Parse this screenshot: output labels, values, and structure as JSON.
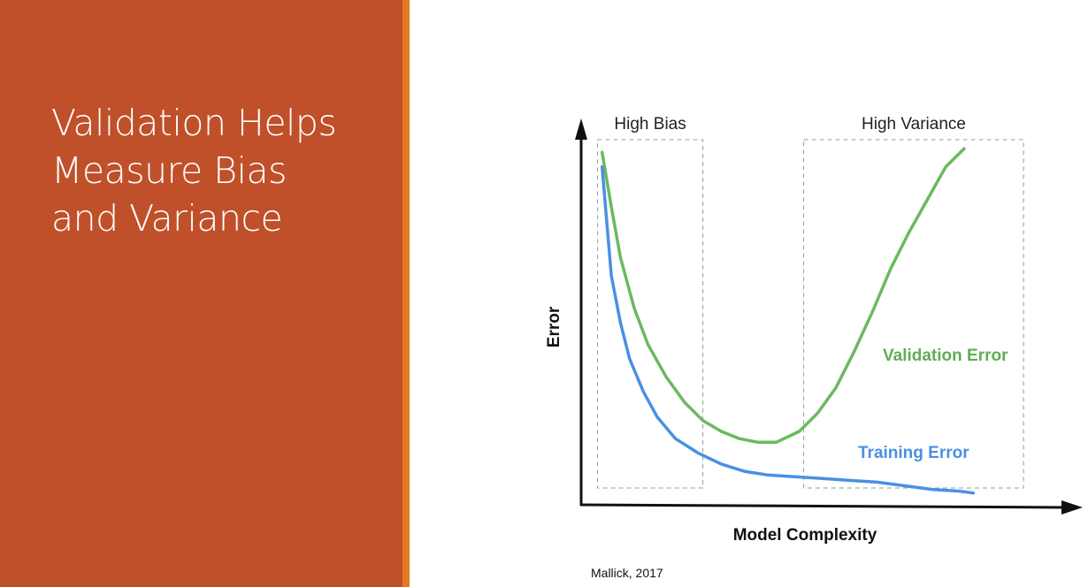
{
  "slide": {
    "title_lines": [
      "Validation Helps",
      "Measure Bias",
      "and Variance"
    ],
    "citation": "Mallick, 2017"
  },
  "colors": {
    "panel": "#bf502a",
    "accent": "#e57a24",
    "training": "#4a90e2",
    "validation": "#6aba5e",
    "region_border": "#9a9a9a",
    "axis": "#111111"
  },
  "chart_data": {
    "type": "line",
    "title": "",
    "xlabel": "Model Complexity",
    "ylabel": "Error",
    "xlim": [
      0,
      1
    ],
    "ylim": [
      0,
      1
    ],
    "grid": false,
    "series": [
      {
        "name": "Validation Error",
        "x": [
          0.04,
          0.06,
          0.08,
          0.11,
          0.14,
          0.18,
          0.22,
          0.26,
          0.3,
          0.34,
          0.38,
          0.42,
          0.47,
          0.51,
          0.55,
          0.59,
          0.63,
          0.67,
          0.71,
          0.75,
          0.79,
          0.83
        ],
        "values": [
          0.97,
          0.82,
          0.68,
          0.54,
          0.44,
          0.35,
          0.28,
          0.23,
          0.2,
          0.18,
          0.17,
          0.17,
          0.2,
          0.25,
          0.32,
          0.42,
          0.53,
          0.65,
          0.75,
          0.84,
          0.93,
          0.98
        ]
      },
      {
        "name": "Training Error",
        "x": [
          0.04,
          0.05,
          0.06,
          0.08,
          0.1,
          0.13,
          0.16,
          0.2,
          0.25,
          0.3,
          0.35,
          0.4,
          0.46,
          0.52,
          0.58,
          0.64,
          0.7,
          0.76,
          0.82,
          0.85
        ],
        "values": [
          0.93,
          0.78,
          0.63,
          0.5,
          0.4,
          0.31,
          0.24,
          0.18,
          0.14,
          0.11,
          0.09,
          0.08,
          0.075,
          0.07,
          0.065,
          0.06,
          0.05,
          0.04,
          0.035,
          0.03
        ]
      }
    ],
    "regions": [
      {
        "label": "High Bias",
        "x_range": [
          0.03,
          0.26
        ]
      },
      {
        "label": "High Variance",
        "x_range": [
          0.48,
          0.96
        ]
      }
    ],
    "legend": "inline labels near curves"
  }
}
